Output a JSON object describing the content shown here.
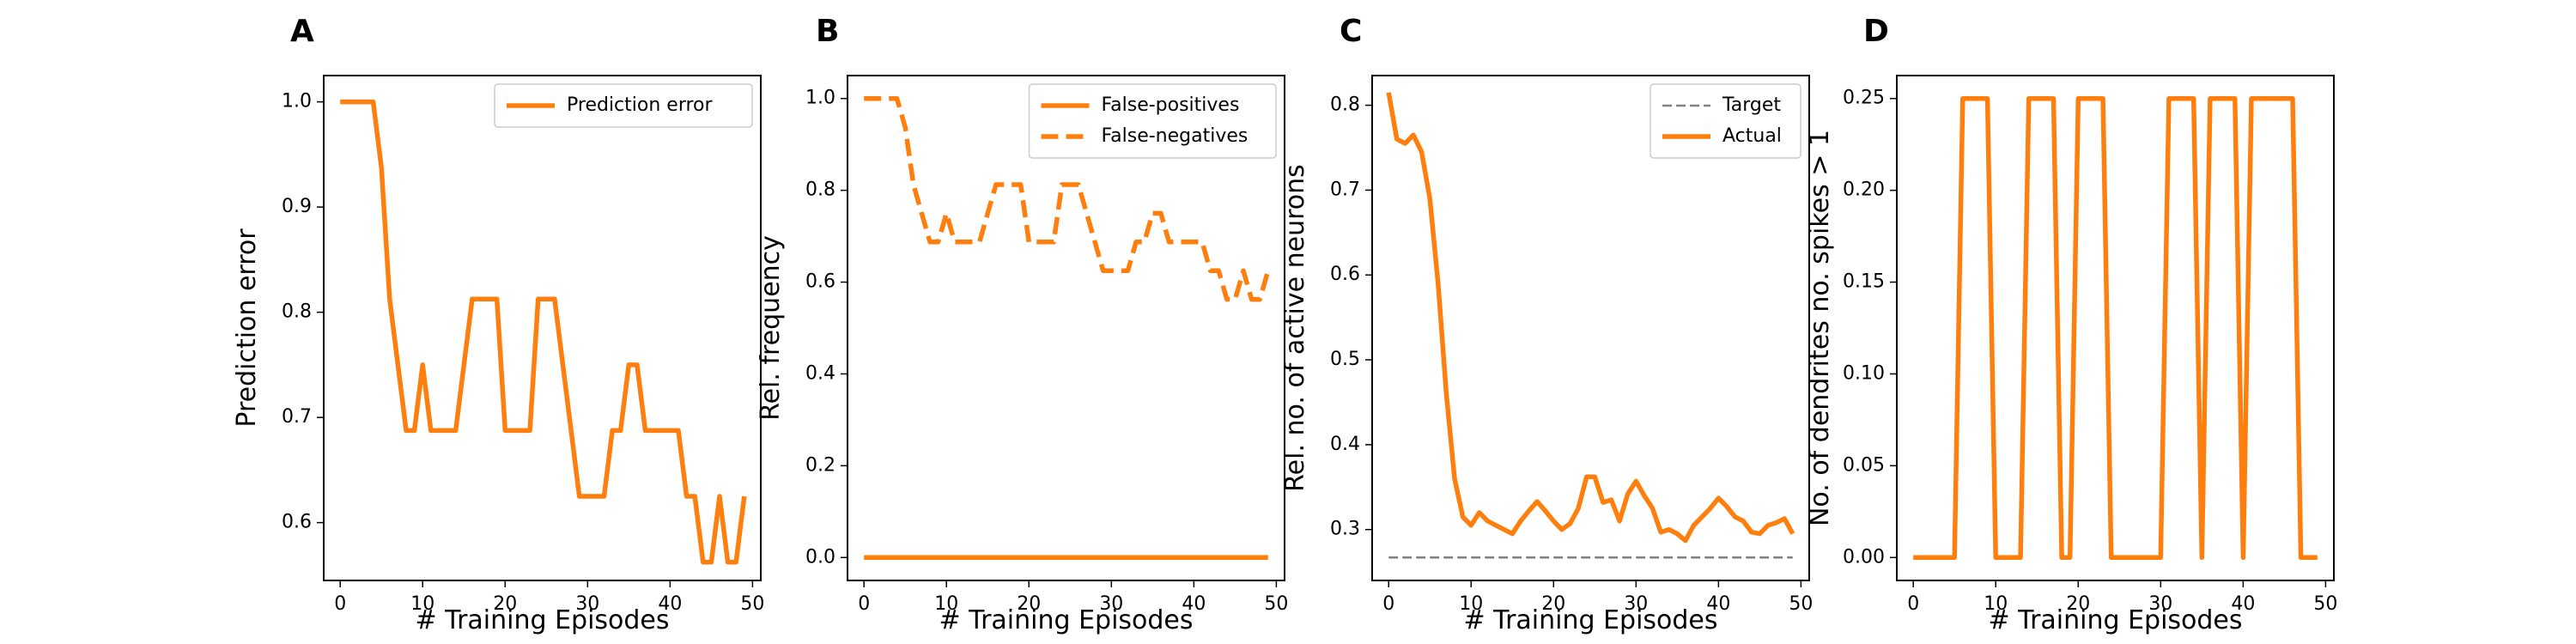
{
  "colors": {
    "accent": "#ff7f0e",
    "target": "#808080"
  },
  "chart_data": [
    {
      "panel": "A",
      "type": "line",
      "xlabel": "# Training Episodes",
      "ylabel": "Prediction error",
      "xlim": [
        -2,
        51
      ],
      "ylim": [
        0.545,
        1.025
      ],
      "xticks": [
        0,
        10,
        20,
        30,
        40,
        50
      ],
      "yticks": [
        0.6,
        0.7,
        0.8,
        0.9,
        1.0
      ],
      "ytick_labels": [
        "0.6",
        "0.7",
        "0.8",
        "0.9",
        "1.0"
      ],
      "legend": "top-right",
      "series": [
        {
          "name": "Prediction error",
          "style": "solid",
          "color": "#ff7f0e",
          "values": [
            1.0,
            1.0,
            1.0,
            1.0,
            1.0,
            0.9375,
            0.8125,
            0.75,
            0.6875,
            0.6875,
            0.75,
            0.6875,
            0.6875,
            0.6875,
            0.6875,
            0.75,
            0.8125,
            0.8125,
            0.8125,
            0.8125,
            0.6875,
            0.6875,
            0.6875,
            0.6875,
            0.8125,
            0.8125,
            0.8125,
            0.75,
            0.6875,
            0.625,
            0.625,
            0.625,
            0.625,
            0.6875,
            0.6875,
            0.75,
            0.75,
            0.6875,
            0.6875,
            0.6875,
            0.6875,
            0.6875,
            0.625,
            0.625,
            0.5625,
            0.5625,
            0.625,
            0.5625,
            0.5625,
            0.625
          ]
        }
      ]
    },
    {
      "panel": "B",
      "type": "line",
      "xlabel": "# Training Episodes",
      "ylabel": "Rel. frequency",
      "xlim": [
        -2,
        51
      ],
      "ylim": [
        -0.05,
        1.05
      ],
      "xticks": [
        0,
        10,
        20,
        30,
        40,
        50
      ],
      "yticks": [
        0.0,
        0.2,
        0.4,
        0.6,
        0.8,
        1.0
      ],
      "ytick_labels": [
        "0.0",
        "0.2",
        "0.4",
        "0.6",
        "0.8",
        "1.0"
      ],
      "legend": "top-right",
      "series": [
        {
          "name": "False-positives",
          "style": "solid",
          "color": "#ff7f0e",
          "values": [
            0,
            0,
            0,
            0,
            0,
            0,
            0,
            0,
            0,
            0,
            0,
            0,
            0,
            0,
            0,
            0,
            0,
            0,
            0,
            0,
            0,
            0,
            0,
            0,
            0,
            0,
            0,
            0,
            0,
            0,
            0,
            0,
            0,
            0,
            0,
            0,
            0,
            0,
            0,
            0,
            0,
            0,
            0,
            0,
            0,
            0,
            0,
            0,
            0,
            0
          ]
        },
        {
          "name": "False-negatives",
          "style": "dashed",
          "color": "#ff7f0e",
          "values": [
            1.0,
            1.0,
            1.0,
            1.0,
            1.0,
            0.9375,
            0.8125,
            0.75,
            0.6875,
            0.6875,
            0.75,
            0.6875,
            0.6875,
            0.6875,
            0.6875,
            0.75,
            0.8125,
            0.8125,
            0.8125,
            0.8125,
            0.6875,
            0.6875,
            0.6875,
            0.6875,
            0.8125,
            0.8125,
            0.8125,
            0.75,
            0.6875,
            0.625,
            0.625,
            0.625,
            0.625,
            0.6875,
            0.6875,
            0.75,
            0.75,
            0.6875,
            0.6875,
            0.6875,
            0.6875,
            0.6875,
            0.625,
            0.625,
            0.5625,
            0.5625,
            0.625,
            0.5625,
            0.5625,
            0.625
          ]
        }
      ]
    },
    {
      "panel": "C",
      "type": "line",
      "xlabel": "# Training Episodes",
      "ylabel": "Rel. no. of active neurons",
      "xlim": [
        -2,
        51
      ],
      "ylim": [
        0.24,
        0.835
      ],
      "xticks": [
        0,
        10,
        20,
        30,
        40,
        50
      ],
      "yticks": [
        0.3,
        0.4,
        0.5,
        0.6,
        0.7,
        0.8
      ],
      "ytick_labels": [
        "0.3",
        "0.4",
        "0.5",
        "0.6",
        "0.7",
        "0.8"
      ],
      "legend": "top-right",
      "series": [
        {
          "name": "Target",
          "style": "dashed-thin",
          "color": "#808080",
          "values": [
            0.267,
            0.267,
            0.267,
            0.267,
            0.267,
            0.267,
            0.267,
            0.267,
            0.267,
            0.267,
            0.267,
            0.267,
            0.267,
            0.267,
            0.267,
            0.267,
            0.267,
            0.267,
            0.267,
            0.267,
            0.267,
            0.267,
            0.267,
            0.267,
            0.267,
            0.267,
            0.267,
            0.267,
            0.267,
            0.267,
            0.267,
            0.267,
            0.267,
            0.267,
            0.267,
            0.267,
            0.267,
            0.267,
            0.267,
            0.267,
            0.267,
            0.267,
            0.267,
            0.267,
            0.267,
            0.267,
            0.267,
            0.267,
            0.267,
            0.267
          ]
        },
        {
          "name": "Actual",
          "style": "solid",
          "color": "#ff7f0e",
          "values": [
            0.815,
            0.76,
            0.755,
            0.765,
            0.745,
            0.69,
            0.59,
            0.46,
            0.36,
            0.315,
            0.305,
            0.32,
            0.31,
            0.305,
            0.3,
            0.295,
            0.31,
            0.322,
            0.333,
            0.322,
            0.31,
            0.3,
            0.307,
            0.325,
            0.362,
            0.362,
            0.332,
            0.335,
            0.31,
            0.342,
            0.357,
            0.34,
            0.325,
            0.297,
            0.3,
            0.295,
            0.287,
            0.305,
            0.315,
            0.325,
            0.337,
            0.327,
            0.315,
            0.31,
            0.297,
            0.295,
            0.305,
            0.308,
            0.313,
            0.295
          ]
        }
      ]
    },
    {
      "panel": "D",
      "type": "line",
      "xlabel": "# Training Episodes",
      "ylabel": "No. of dendrites no. spikes > 1",
      "xlim": [
        -2,
        51
      ],
      "ylim": [
        -0.0125,
        0.2625
      ],
      "xticks": [
        0,
        10,
        20,
        30,
        40,
        50
      ],
      "yticks": [
        0.0,
        0.05,
        0.1,
        0.15,
        0.2,
        0.25
      ],
      "ytick_labels": [
        "0.00",
        "0.05",
        "0.10",
        "0.15",
        "0.20",
        "0.25"
      ],
      "legend": "none",
      "series": [
        {
          "name": "",
          "style": "solid",
          "color": "#ff7f0e",
          "values": [
            0,
            0,
            0,
            0,
            0,
            0,
            0.25,
            0.25,
            0.25,
            0.25,
            0,
            0,
            0,
            0,
            0.25,
            0.25,
            0.25,
            0.25,
            0,
            0,
            0.25,
            0.25,
            0.25,
            0.25,
            0,
            0,
            0,
            0,
            0,
            0,
            0,
            0.25,
            0.25,
            0.25,
            0.25,
            0,
            0.25,
            0.25,
            0.25,
            0.25,
            0,
            0.25,
            0.25,
            0.25,
            0.25,
            0.25,
            0.25,
            0,
            0,
            0
          ]
        }
      ]
    }
  ]
}
